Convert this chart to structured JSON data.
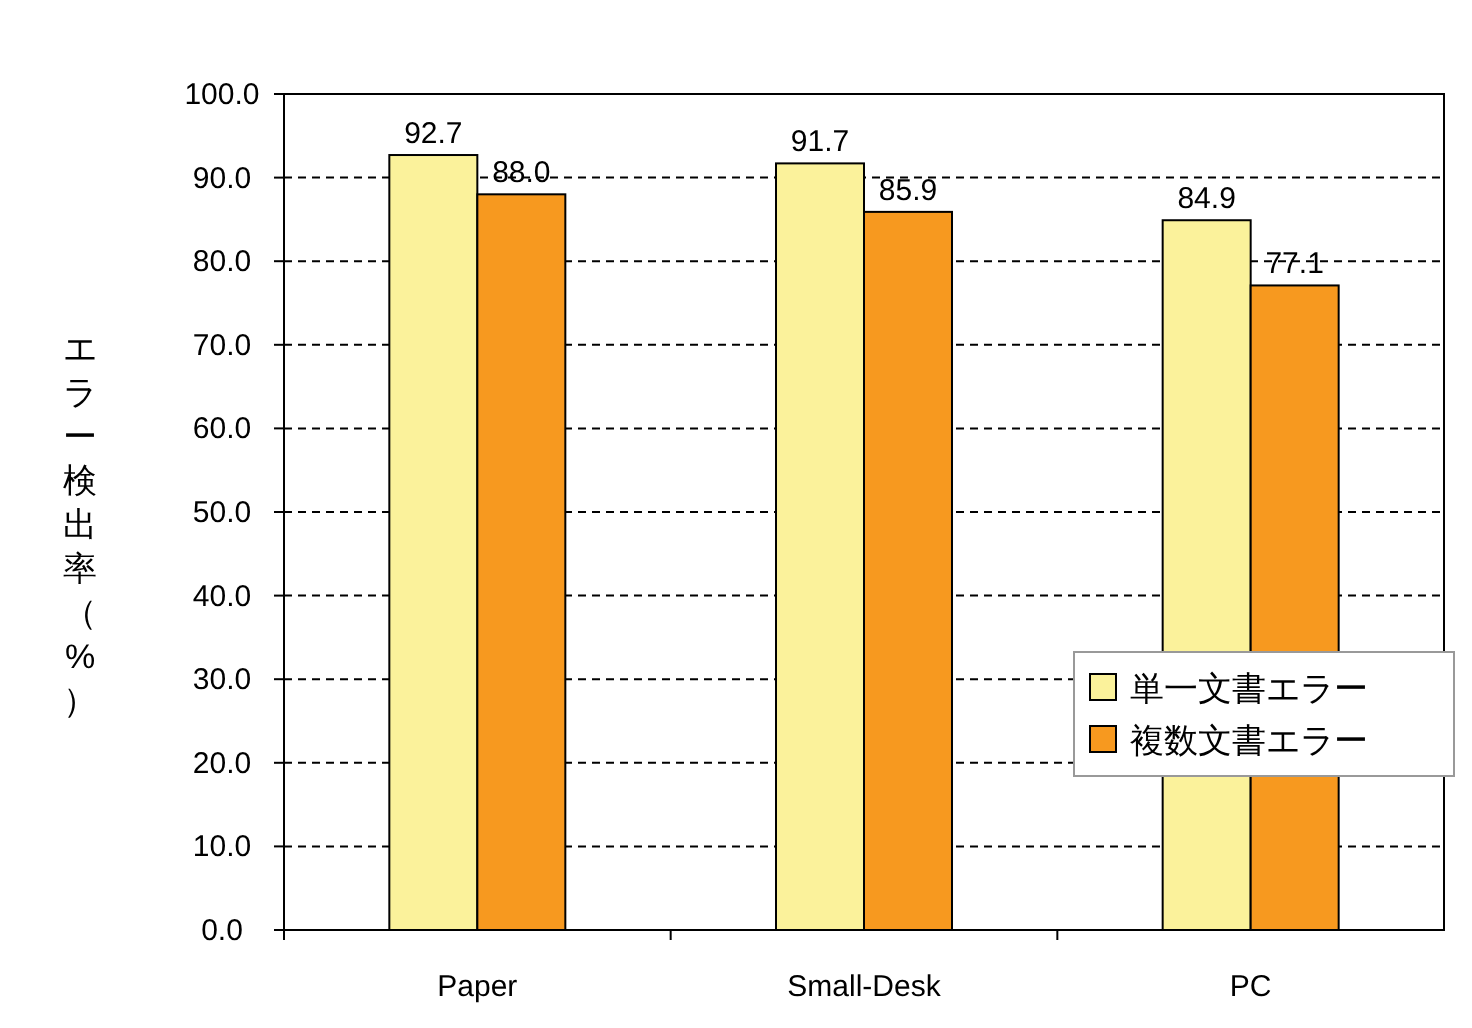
{
  "chart_data": {
    "type": "bar",
    "ylabel": "エラー検出率（%）",
    "categories": [
      "Paper",
      "Small-Desk",
      "PC"
    ],
    "series": [
      {
        "name": "単一文書エラー",
        "color": "#fbf29b",
        "values": [
          92.7,
          91.7,
          84.9
        ],
        "value_labels": [
          "92.7",
          "91.7",
          "84.9"
        ]
      },
      {
        "name": "複数文書エラー",
        "color": "#f7991f",
        "values": [
          88.0,
          85.9,
          77.1
        ],
        "value_labels": [
          "88.0",
          "85.9",
          "77.1"
        ]
      }
    ],
    "ylim": [
      0,
      100
    ],
    "yticks": [
      {
        "value": 0,
        "label": "0.0"
      },
      {
        "value": 10,
        "label": "10.0"
      },
      {
        "value": 20,
        "label": "20.0"
      },
      {
        "value": 30,
        "label": "30.0"
      },
      {
        "value": 40,
        "label": "40.0"
      },
      {
        "value": 50,
        "label": "50.0"
      },
      {
        "value": 60,
        "label": "60.0"
      },
      {
        "value": 70,
        "label": "70.0"
      },
      {
        "value": 80,
        "label": "80.0"
      },
      {
        "value": 90,
        "label": "90.0"
      },
      {
        "value": 100,
        "label": "100.0"
      }
    ],
    "grid": "y",
    "legend": "right"
  }
}
